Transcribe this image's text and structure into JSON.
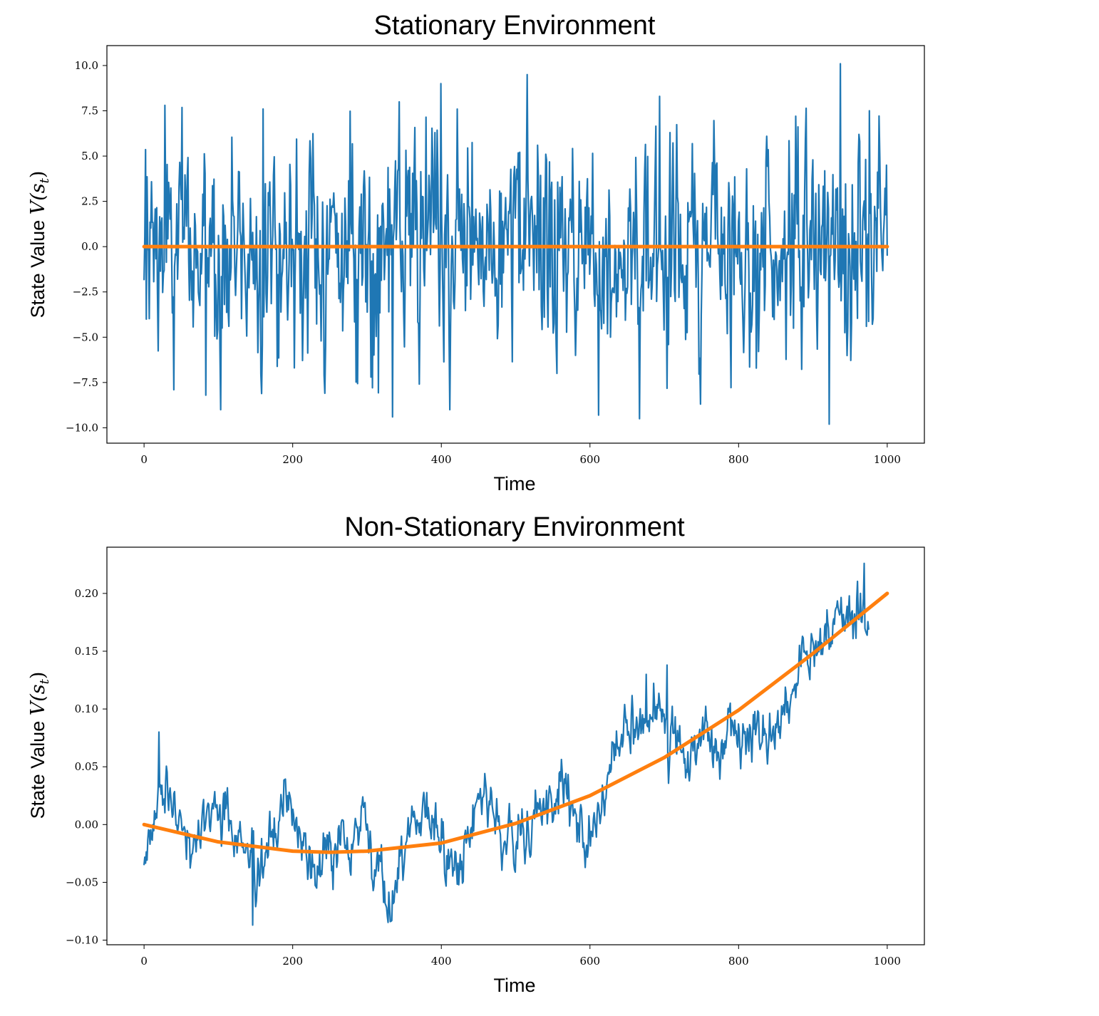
{
  "colors": {
    "observed": "#1f77b4",
    "trend": "#ff7f0e",
    "axis": "#000000",
    "background": "#ffffff"
  },
  "chart_data": [
    {
      "type": "line",
      "title": "Stationary Environment",
      "xlabel": "Time",
      "ylabel_prefix": "State Value ",
      "ylabel_math": "V(s",
      "ylabel_sub": "t",
      "ylabel_suffix": ")",
      "xlim": [
        -50,
        1050
      ],
      "ylim": [
        -10.85,
        11.1
      ],
      "xticks": [
        0,
        200,
        400,
        600,
        800,
        1000
      ],
      "xtick_labels": [
        "0",
        "200",
        "400",
        "600",
        "800",
        "1000"
      ],
      "yticks": [
        -10.0,
        -7.5,
        -5.0,
        -2.5,
        0.0,
        2.5,
        5.0,
        7.5,
        10.0
      ],
      "ytick_labels": [
        "−10.0",
        "−7.5",
        "−5.0",
        "−2.5",
        "0.0",
        "2.5",
        "5.0",
        "7.5",
        "10.0"
      ],
      "series": [
        {
          "role": "observed",
          "generator": "stationary_noise",
          "x_range": [
            0,
            1000
          ],
          "count": 1000,
          "std": 3.0,
          "notable_points": [
            {
              "x": 3,
              "y": -4.0
            },
            {
              "x": 28,
              "y": 7.8
            },
            {
              "x": 40,
              "y": -7.9
            },
            {
              "x": 83,
              "y": -8.2
            },
            {
              "x": 160,
              "y": 7.6
            },
            {
              "x": 334,
              "y": -9.4
            },
            {
              "x": 399,
              "y": 9.0
            },
            {
              "x": 516,
              "y": 9.5
            },
            {
              "x": 612,
              "y": -9.3
            },
            {
              "x": 667,
              "y": -9.5
            },
            {
              "x": 694,
              "y": 8.3
            },
            {
              "x": 922,
              "y": -9.8
            },
            {
              "x": 937,
              "y": 10.1
            },
            {
              "x": 976,
              "y": 7.5
            }
          ]
        },
        {
          "role": "trend",
          "x": [
            0,
            1000
          ],
          "y": [
            0.0,
            0.0
          ]
        }
      ]
    },
    {
      "type": "line",
      "title": "Non-Stationary Environment",
      "xlabel": "Time",
      "ylabel_prefix": "State Value ",
      "ylabel_math": "V(s",
      "ylabel_sub": "t",
      "ylabel_suffix": ")",
      "xlim": [
        -50,
        1050
      ],
      "ylim": [
        -0.104,
        0.24
      ],
      "xticks": [
        0,
        200,
        400,
        600,
        800,
        1000
      ],
      "xtick_labels": [
        "0",
        "200",
        "400",
        "600",
        "800",
        "1000"
      ],
      "yticks": [
        -0.1,
        -0.05,
        0.0,
        0.05,
        0.1,
        0.15,
        0.2
      ],
      "ytick_labels": [
        "−0.10",
        "−0.05",
        "0.00",
        "0.05",
        "0.10",
        "0.15",
        "0.20"
      ],
      "series": [
        {
          "role": "observed",
          "generator": "random_walk_around_trend",
          "x_range": [
            0,
            975
          ],
          "count": 975,
          "anchors": [
            {
              "x": 0,
              "y": -0.03
            },
            {
              "x": 20,
              "y": 0.03
            },
            {
              "x": 40,
              "y": 0.02
            },
            {
              "x": 60,
              "y": -0.02
            },
            {
              "x": 100,
              "y": 0.02
            },
            {
              "x": 150,
              "y": -0.05
            },
            {
              "x": 190,
              "y": 0.02
            },
            {
              "x": 230,
              "y": -0.04
            },
            {
              "x": 290,
              "y": 0.0
            },
            {
              "x": 335,
              "y": -0.06
            },
            {
              "x": 360,
              "y": 0.02
            },
            {
              "x": 420,
              "y": -0.04
            },
            {
              "x": 450,
              "y": 0.03
            },
            {
              "x": 470,
              "y": 0.01
            },
            {
              "x": 490,
              "y": -0.02
            },
            {
              "x": 560,
              "y": 0.03
            },
            {
              "x": 600,
              "y": -0.01
            },
            {
              "x": 640,
              "y": 0.07
            },
            {
              "x": 665,
              "y": 0.09
            },
            {
              "x": 700,
              "y": 0.08
            },
            {
              "x": 730,
              "y": 0.06
            },
            {
              "x": 770,
              "y": 0.07
            },
            {
              "x": 800,
              "y": 0.07
            },
            {
              "x": 830,
              "y": 0.07
            },
            {
              "x": 860,
              "y": 0.09
            },
            {
              "x": 880,
              "y": 0.14
            },
            {
              "x": 910,
              "y": 0.15
            },
            {
              "x": 940,
              "y": 0.18
            },
            {
              "x": 975,
              "y": 0.18
            }
          ],
          "notable_points": [
            {
              "x": 20,
              "y": 0.08
            },
            {
              "x": 146,
              "y": -0.087
            },
            {
              "x": 333,
              "y": -0.083
            },
            {
              "x": 676,
              "y": 0.13
            },
            {
              "x": 704,
              "y": 0.138
            },
            {
              "x": 969,
              "y": 0.226
            }
          ]
        },
        {
          "role": "trend",
          "x": [
            0,
            100,
            200,
            250,
            300,
            400,
            500,
            600,
            700,
            800,
            900,
            1000
          ],
          "y": [
            0.0,
            -0.015,
            -0.023,
            -0.024,
            -0.023,
            -0.016,
            0.001,
            0.025,
            0.058,
            0.099,
            0.148,
            0.2
          ]
        }
      ]
    }
  ]
}
